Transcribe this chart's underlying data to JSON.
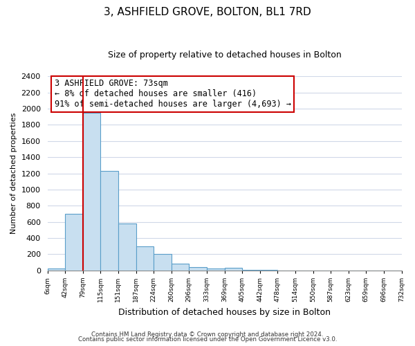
{
  "title": "3, ASHFIELD GROVE, BOLTON, BL1 7RD",
  "subtitle": "Size of property relative to detached houses in Bolton",
  "xlabel": "Distribution of detached houses by size in Bolton",
  "ylabel": "Number of detached properties",
  "bin_labels": [
    "6sqm",
    "42sqm",
    "79sqm",
    "115sqm",
    "151sqm",
    "187sqm",
    "224sqm",
    "260sqm",
    "296sqm",
    "333sqm",
    "369sqm",
    "405sqm",
    "442sqm",
    "478sqm",
    "514sqm",
    "550sqm",
    "587sqm",
    "623sqm",
    "659sqm",
    "696sqm",
    "732sqm"
  ],
  "bar_heights": [
    20,
    700,
    1950,
    1230,
    580,
    300,
    200,
    80,
    45,
    25,
    35,
    10,
    5,
    2,
    0,
    0,
    0,
    0,
    0,
    0
  ],
  "bar_color": "#c8dff0",
  "bar_edge_color": "#5a9ec9",
  "ylim": [
    0,
    2400
  ],
  "yticks": [
    0,
    200,
    400,
    600,
    800,
    1000,
    1200,
    1400,
    1600,
    1800,
    2000,
    2200,
    2400
  ],
  "property_line_color": "#cc0000",
  "annotation_line1": "3 ASHFIELD GROVE: 73sqm",
  "annotation_line2": "← 8% of detached houses are smaller (416)",
  "annotation_line3": "91% of semi-detached houses are larger (4,693) →",
  "footnote1": "Contains HM Land Registry data © Crown copyright and database right 2024.",
  "footnote2": "Contains public sector information licensed under the Open Government Licence v3.0.",
  "background_color": "#ffffff",
  "grid_color": "#d0d8e8"
}
